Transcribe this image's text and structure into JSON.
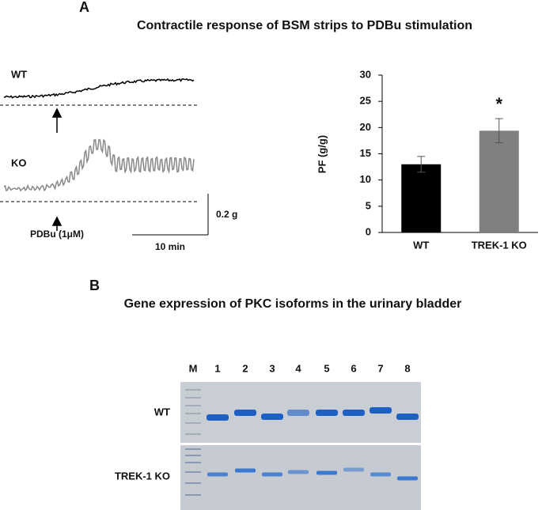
{
  "panel_a": {
    "label": "A",
    "title": "Contractile response of BSM strips to PDBu stimulation",
    "traces": {
      "wt_label": "WT",
      "ko_label": "KO",
      "stimulus": "PDBu (1μM)",
      "force_scale": "0.2 g",
      "time_scale": "10 min"
    }
  },
  "chart_data": {
    "type": "bar",
    "categories": [
      "WT",
      "TREK-1 KO"
    ],
    "values": [
      13,
      19.4
    ],
    "errors": [
      1.5,
      2.3
    ],
    "colors": [
      "#000000",
      "#808080"
    ],
    "ylabel": "PF (g/g)",
    "ylim": [
      0,
      30
    ],
    "yticks": [
      0,
      5,
      10,
      15,
      20,
      25,
      30
    ],
    "annotation": "*",
    "grid": false
  },
  "panel_b": {
    "label": "B",
    "title": "Gene expression of PKC isoforms in the urinary bladder",
    "lanes": [
      "M",
      "1",
      "2",
      "3",
      "4",
      "5",
      "6",
      "7",
      "8"
    ],
    "rows": [
      "WT",
      "TREK-1 KO"
    ]
  }
}
